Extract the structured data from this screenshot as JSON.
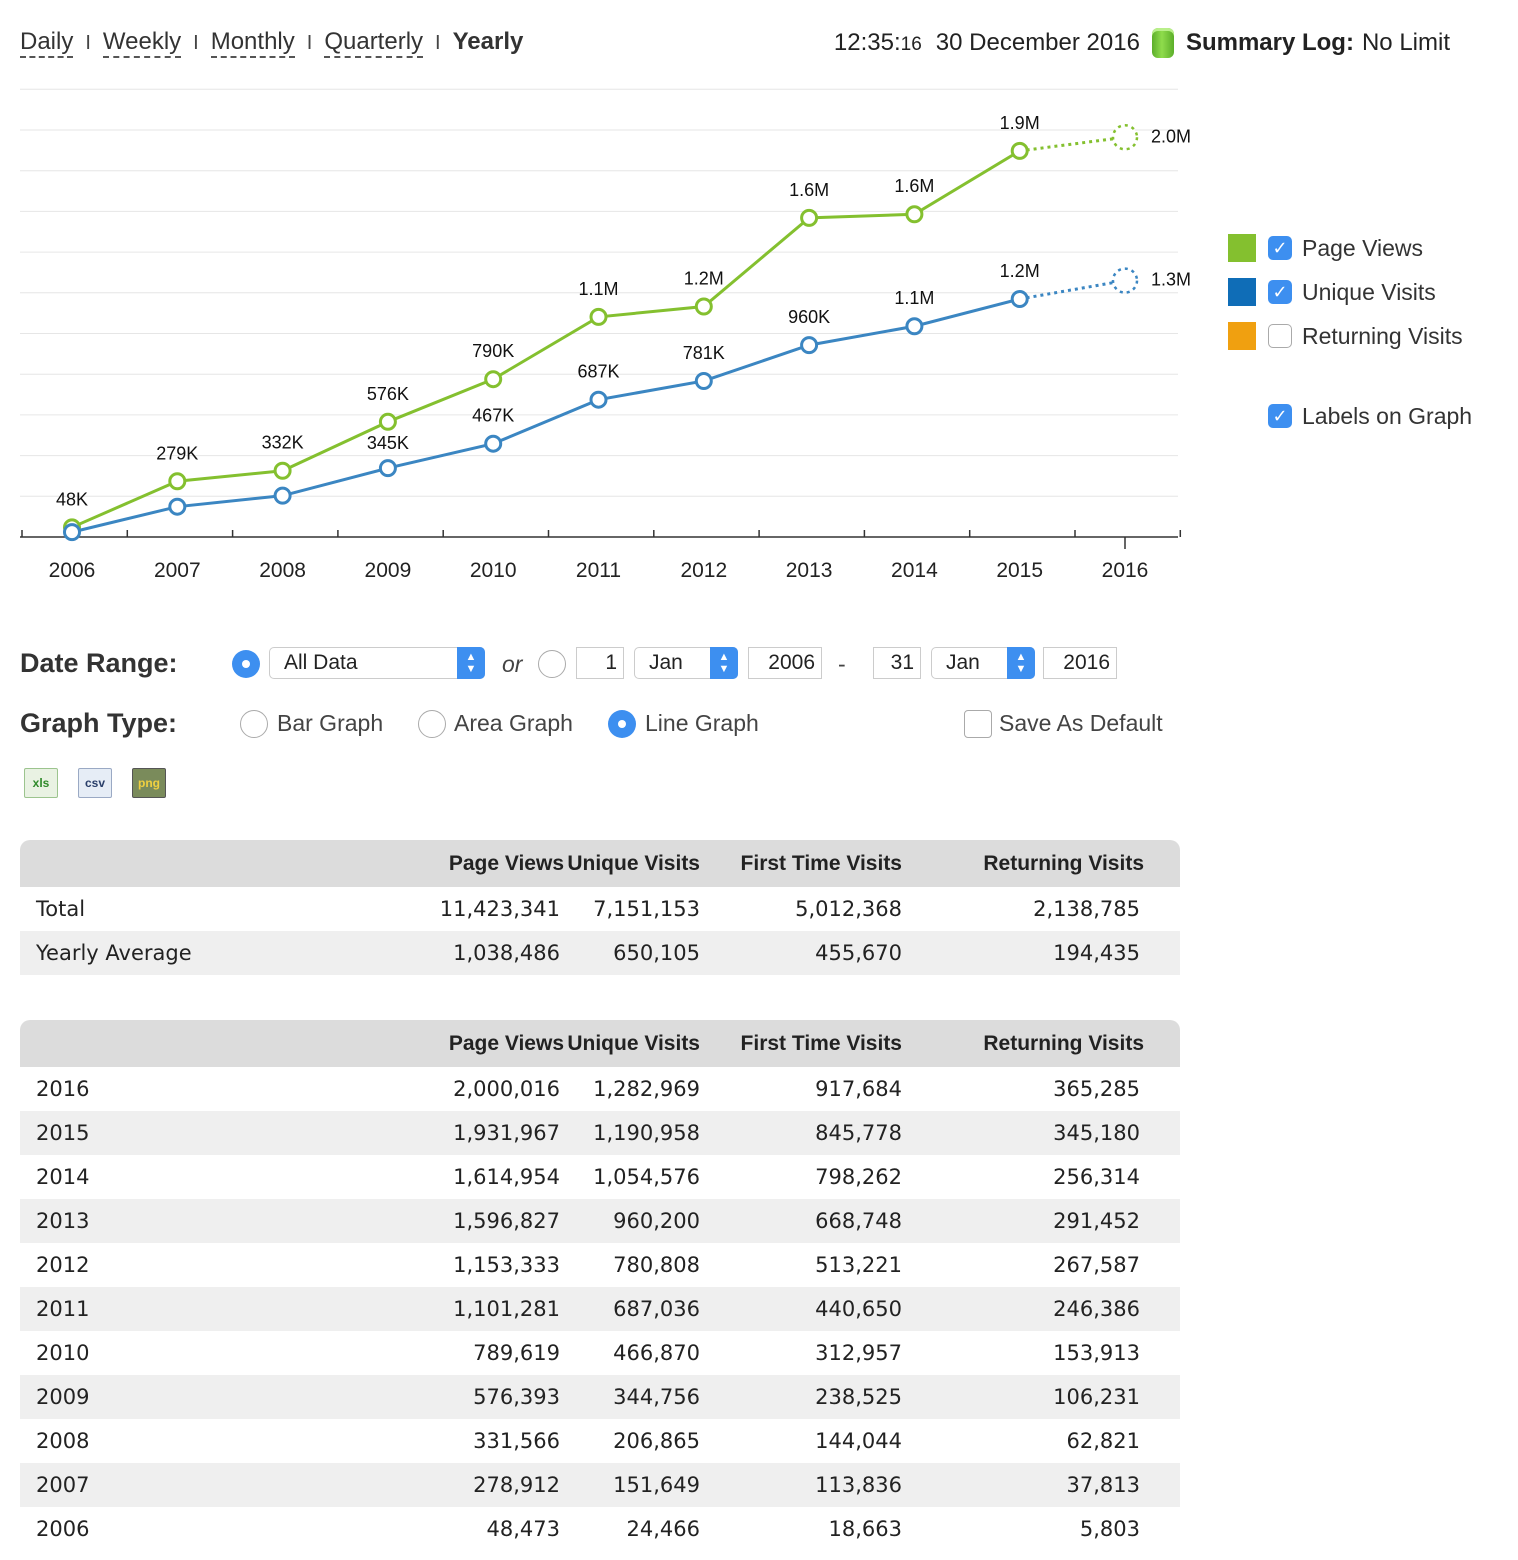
{
  "periods": [
    {
      "label": "Daily",
      "active": false
    },
    {
      "label": "Weekly",
      "active": false
    },
    {
      "label": "Monthly",
      "active": false
    },
    {
      "label": "Quarterly",
      "active": false
    },
    {
      "label": "Yearly",
      "active": true
    }
  ],
  "header": {
    "time_hm": "12:35:",
    "time_s": "16",
    "date": "30 December 2016",
    "summary_label": "Summary Log:",
    "summary_value": "No Limit"
  },
  "legend": {
    "items": [
      {
        "label": "Page Views",
        "color": "#84c02f",
        "checked": true
      },
      {
        "label": "Unique Visits",
        "color": "#0f6db7",
        "checked": true
      },
      {
        "label": "Returning Visits",
        "color": "#f0a010",
        "checked": false
      }
    ],
    "labels_on_graph": {
      "label": "Labels on Graph",
      "checked": true
    }
  },
  "chart_data": {
    "type": "line",
    "x": [
      "2006",
      "2007",
      "2008",
      "2009",
      "2010",
      "2011",
      "2012",
      "2013",
      "2014",
      "2015",
      "2016"
    ],
    "series": [
      {
        "name": "Page Views",
        "color": "#84c02f",
        "values": [
          48473,
          278912,
          331566,
          576393,
          789619,
          1101281,
          1153333,
          1596827,
          1614954,
          1931967,
          2000016
        ],
        "labels": [
          "48K",
          "279K",
          "332K",
          "576K",
          "790K",
          "1.1M",
          "1.2M",
          "1.6M",
          "1.6M",
          "1.9M",
          "2.0M"
        ]
      },
      {
        "name": "Unique Visits",
        "color": "#3b86c2",
        "values": [
          24466,
          151649,
          206865,
          344756,
          466870,
          687036,
          780808,
          960200,
          1054576,
          1190958,
          1282969
        ],
        "labels": [
          "",
          "",
          "",
          "345K",
          "467K",
          "687K",
          "781K",
          "960K",
          "1.1M",
          "1.2M",
          "1.3M"
        ]
      }
    ],
    "projected_last_point": true,
    "ylim": [
      0,
      2200000
    ],
    "grid": true
  },
  "controls": {
    "date_range_label": "Date Range:",
    "range_select": "All Data",
    "or_text": "or",
    "from_day": "1",
    "from_month": "Jan",
    "from_year": "2006",
    "dash": "-",
    "to_day": "31",
    "to_month": "Jan",
    "to_year": "2016",
    "graph_type_label": "Graph Type:",
    "graph_types": [
      "Bar Graph",
      "Area Graph",
      "Line Graph"
    ],
    "selected_graph_type": "Line Graph",
    "save_default": "Save As Default",
    "exports": [
      "xls",
      "csv",
      "png"
    ]
  },
  "summary_table": {
    "headers": [
      "",
      "Page Views",
      "Unique Visits",
      "First Time Visits",
      "Returning Visits"
    ],
    "rows": [
      [
        "Total",
        "11,423,341",
        "7,151,153",
        "5,012,368",
        "2,138,785"
      ],
      [
        "Yearly Average",
        "1,038,486",
        "650,105",
        "455,670",
        "194,435"
      ]
    ]
  },
  "yearly_table": {
    "headers": [
      "",
      "Page Views",
      "Unique Visits",
      "First Time Visits",
      "Returning Visits"
    ],
    "rows": [
      [
        "2016",
        "2,000,016",
        "1,282,969",
        "917,684",
        "365,285"
      ],
      [
        "2015",
        "1,931,967",
        "1,190,958",
        "845,778",
        "345,180"
      ],
      [
        "2014",
        "1,614,954",
        "1,054,576",
        "798,262",
        "256,314"
      ],
      [
        "2013",
        "1,596,827",
        "960,200",
        "668,748",
        "291,452"
      ],
      [
        "2012",
        "1,153,333",
        "780,808",
        "513,221",
        "267,587"
      ],
      [
        "2011",
        "1,101,281",
        "687,036",
        "440,650",
        "246,386"
      ],
      [
        "2010",
        "789,619",
        "466,870",
        "312,957",
        "153,913"
      ],
      [
        "2009",
        "576,393",
        "344,756",
        "238,525",
        "106,231"
      ],
      [
        "2008",
        "331,566",
        "206,865",
        "144,044",
        "62,821"
      ],
      [
        "2007",
        "278,912",
        "151,649",
        "113,836",
        "37,813"
      ],
      [
        "2006",
        "48,473",
        "24,466",
        "18,663",
        "5,803"
      ]
    ]
  }
}
